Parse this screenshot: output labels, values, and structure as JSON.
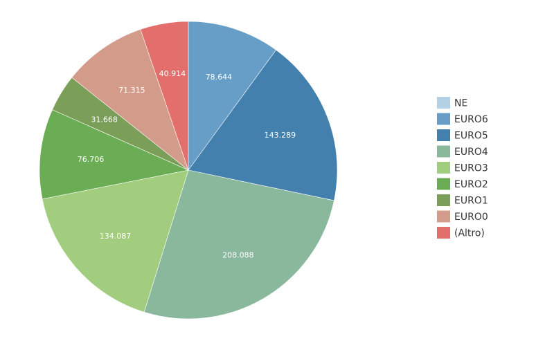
{
  "chart_data": {
    "type": "pie",
    "title": "",
    "categories": [
      "NE",
      "EURO6",
      "EURO5",
      "EURO4",
      "EURO3",
      "EURO2",
      "EURO1",
      "EURO0",
      "(Altro)"
    ],
    "values": [
      0,
      78644,
      143289,
      208088,
      134087,
      76706,
      31668,
      71315,
      40914
    ],
    "value_labels": [
      "",
      "78.644",
      "143.289",
      "208.088",
      "134.087",
      "76.706",
      "31.668",
      "71.315",
      "40.914"
    ],
    "colors": [
      "#b3d0e5",
      "#679ec8",
      "#4480ae",
      "#8ab89d",
      "#a2cd7f",
      "#6aad55",
      "#7b9e58",
      "#d39c8a",
      "#e36f6d"
    ],
    "start": "12 o'clock",
    "direction": "clockwise",
    "legend_position": "right"
  }
}
